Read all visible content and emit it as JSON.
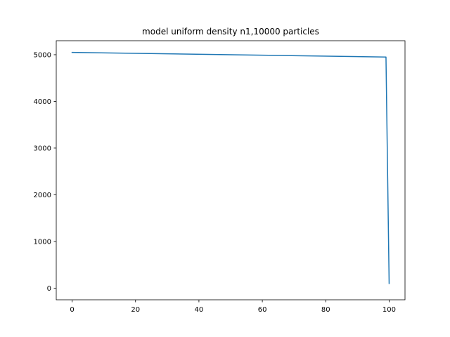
{
  "chart_data": {
    "type": "line",
    "title": "model uniform density n1,10000 particles",
    "xlabel": "",
    "ylabel": "",
    "xlim": [
      -5,
      105
    ],
    "ylim": [
      -250,
      5300
    ],
    "xticks": [
      0,
      20,
      40,
      60,
      80,
      100
    ],
    "yticks": [
      0,
      1000,
      2000,
      3000,
      4000,
      5000
    ],
    "grid": false,
    "series": [
      {
        "color": "#1f77b4",
        "x": [
          0,
          99,
          100
        ],
        "y": [
          5050,
          4950,
          100
        ]
      }
    ]
  }
}
